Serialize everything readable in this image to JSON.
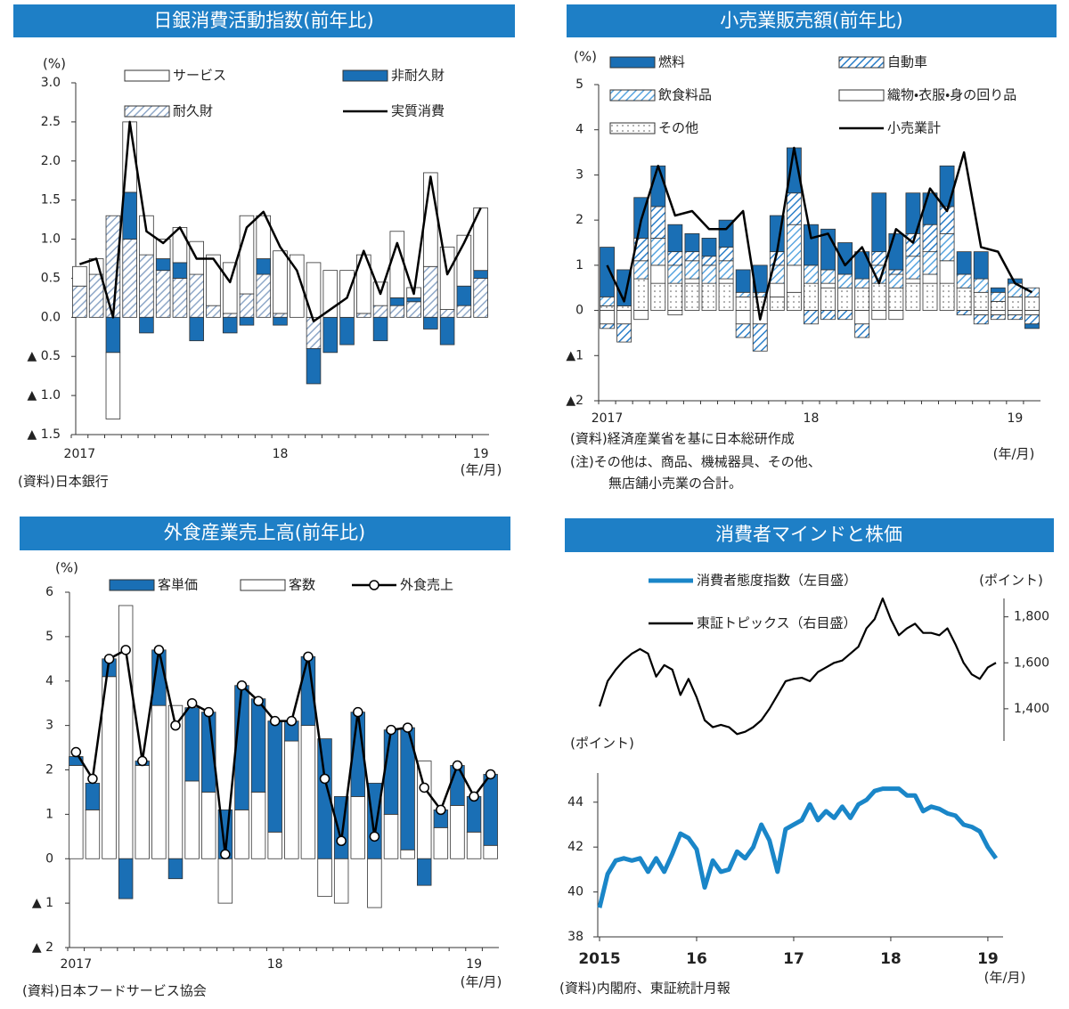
{
  "chart_data": [
    {
      "type": "bar",
      "title": "日銀消費活動指数(前年比)",
      "y_unit": "(%)",
      "x_unit": "(年/月)",
      "source": "(資料)日本銀行",
      "categories": [
        "2017",
        null,
        null,
        null,
        null,
        null,
        null,
        null,
        null,
        null,
        null,
        null,
        "18",
        null,
        null,
        null,
        null,
        null,
        null,
        null,
        null,
        null,
        null,
        null,
        "19"
      ],
      "ylim": [
        -1.5,
        3
      ],
      "yticks": [
        {
          "value": 3,
          "label": "3.0"
        },
        2.5,
        {
          "value": 2,
          "label": "2.0"
        },
        1.5,
        {
          "value": 1,
          "label": "1.0"
        },
        0.5,
        {
          "value": 0,
          "label": "0.0"
        },
        {
          "value": -0.5,
          "label": "▲ 0.5"
        },
        {
          "value": -1,
          "label": "▲ 1.0"
        },
        {
          "value": -1.5,
          "label": "▲ 1.5"
        }
      ],
      "series": [
        {
          "name": "サービス",
          "color": "#ffffff",
          "values": [
            0.25,
            0.2,
            -0.85,
            0.9,
            0.5,
            0.25,
            0.45,
            0.42,
            0.65,
            0.65,
            1.0,
            0.55,
            0.8,
            0.8,
            0.7,
            0.6,
            0.6,
            0.75,
            0.3,
            0.85,
            0.13,
            1.2,
            0.8,
            0.65,
            0.8
          ]
        },
        {
          "name": "非耐久財",
          "color": "#1a6fb5",
          "values": [
            0,
            0,
            -0.45,
            0.6,
            -0.2,
            0.15,
            0.2,
            -0.3,
            0,
            -0.2,
            -0.1,
            0.2,
            -0.1,
            0,
            -0.45,
            -0.45,
            -0.35,
            0,
            -0.3,
            0.1,
            0.05,
            -0.15,
            -0.35,
            0.25,
            0.1
          ]
        },
        {
          "name": "耐久財",
          "color": "#8fa8c8",
          "pattern": "hatch",
          "values": [
            0.4,
            0.55,
            1.3,
            1.0,
            0.8,
            0.6,
            0.5,
            0.55,
            0.15,
            0.05,
            0.3,
            0.55,
            0.05,
            0,
            -0.4,
            0,
            0,
            0.05,
            0.15,
            0.15,
            0.2,
            0.65,
            0.1,
            0.15,
            0.5
          ]
        },
        {
          "name": "実質消費",
          "type": "line",
          "color": "#000000",
          "values": [
            0.68,
            0.75,
            0.0,
            2.5,
            1.1,
            0.95,
            1.15,
            0.75,
            0.75,
            0.45,
            1.15,
            1.35,
            0.9,
            0.6,
            -0.05,
            0.1,
            0.25,
            0.85,
            0.3,
            0.95,
            0.3,
            1.8,
            0.55,
            0.95,
            1.4
          ]
        }
      ]
    },
    {
      "type": "bar",
      "title": "小売業販売額(前年比)",
      "y_unit": "(%)",
      "x_unit": "(年/月)",
      "source": "(資料)経済産業省を基に日本総研作成",
      "notes": [
        "(注)その他は、商品、機械器具、その他、",
        "無店舗小売業の合計。"
      ],
      "categories": [
        "2017",
        null,
        null,
        null,
        null,
        null,
        null,
        null,
        null,
        null,
        null,
        null,
        "18",
        null,
        null,
        null,
        null,
        null,
        null,
        null,
        null,
        null,
        null,
        null,
        "19",
        null
      ],
      "ylim": [
        -2,
        5
      ],
      "yticks": [
        5,
        4,
        3,
        2,
        1,
        0,
        {
          "value": -1,
          "label": "▲1"
        },
        {
          "value": -2,
          "label": "▲2"
        }
      ],
      "series": [
        {
          "name": "燃料",
          "color": "#1a6fb5",
          "values": [
            1.1,
            0.8,
            0.9,
            0.9,
            0.6,
            0.4,
            0.4,
            0.6,
            0.5,
            0.6,
            0.8,
            1.0,
            0.9,
            0.9,
            0.7,
            0.6,
            1.3,
            0.8,
            0.9,
            0.7,
            0.9,
            0.5,
            0.6,
            0.1,
            0.1,
            -0.1
          ]
        },
        {
          "name": "自動車",
          "color": "#2b7fc9",
          "pattern": "hatch",
          "values": [
            -0.1,
            -0.4,
            0.5,
            0.7,
            0.3,
            0.2,
            0.2,
            0.3,
            -0.3,
            -0.6,
            0.3,
            0.7,
            -0.3,
            -0.2,
            -0.2,
            -0.3,
            0.3,
            0.1,
            0.5,
            0.6,
            0.6,
            -0.1,
            -0.2,
            -0.1,
            -0.1,
            -0.2
          ]
        },
        {
          "name": "飲食料品",
          "color": "#5aa6e0",
          "pattern": "hatch",
          "values": [
            0.2,
            0.0,
            0.4,
            0.6,
            0.4,
            0.4,
            0.4,
            0.4,
            0.1,
            0.1,
            0.4,
            0.9,
            0.4,
            0.3,
            0.3,
            0.2,
            0.4,
            0.3,
            0.5,
            0.5,
            0.6,
            0.3,
            0.3,
            0.2,
            0.3,
            0.2
          ]
        },
        {
          "name": "織物・衣服・身の回り品",
          "color": "#ffffff",
          "values": [
            -0.3,
            -0.3,
            -0.2,
            0.4,
            -0.1,
            0.1,
            0.0,
            0.1,
            -0.3,
            -0.3,
            0.3,
            0.6,
            0.0,
            0.1,
            0.0,
            -0.3,
            -0.2,
            -0.2,
            0.1,
            0.2,
            0.5,
            0.0,
            -0.1,
            -0.1,
            -0.1,
            -0.1
          ]
        },
        {
          "name": "その他",
          "color": "#555555",
          "pattern": "dots",
          "values": [
            0.1,
            0.1,
            0.7,
            0.6,
            0.6,
            0.6,
            0.6,
            0.6,
            0.3,
            0.3,
            0.3,
            0.4,
            0.6,
            0.5,
            0.5,
            0.5,
            0.6,
            0.5,
            0.6,
            0.6,
            0.6,
            0.5,
            0.4,
            0.2,
            0.3,
            0.3
          ]
        },
        {
          "name": "小売業計",
          "type": "line",
          "color": "#000000",
          "values": [
            1.0,
            0.2,
            2.0,
            3.2,
            2.1,
            2.2,
            1.8,
            1.8,
            2.2,
            -0.2,
            1.3,
            3.6,
            1.6,
            1.7,
            1.0,
            1.4,
            0.6,
            1.8,
            1.5,
            2.7,
            2.2,
            3.5,
            1.4,
            1.3,
            0.6,
            0.4
          ]
        }
      ]
    },
    {
      "type": "bar",
      "title": "外食産業売上高(前年比)",
      "y_unit": "(%)",
      "x_unit": "(年/月)",
      "source": "(資料)日本フードサービス協会",
      "categories": [
        "2017",
        null,
        null,
        null,
        null,
        null,
        null,
        null,
        null,
        null,
        null,
        null,
        "18",
        null,
        null,
        null,
        null,
        null,
        null,
        null,
        null,
        null,
        null,
        null,
        "19",
        null
      ],
      "ylim": [
        -2,
        6
      ],
      "yticks": [
        6,
        5,
        4,
        3,
        2,
        1,
        0,
        {
          "value": -1,
          "label": "▲ 1"
        },
        {
          "value": -2,
          "label": "▲ 2"
        }
      ],
      "series": [
        {
          "name": "客単価",
          "color": "#1a6fb5",
          "values": [
            0.2,
            0.6,
            0.4,
            -0.9,
            0.1,
            1.25,
            -0.45,
            1.65,
            1.8,
            1.1,
            2.8,
            2.1,
            2.5,
            0.45,
            1.55,
            2.7,
            1.4,
            1.9,
            1.7,
            1.9,
            2.75,
            -0.6,
            0.4,
            0.9,
            0.8,
            1.6
          ]
        },
        {
          "name": "客数",
          "color": "#ffffff",
          "values": [
            2.1,
            1.1,
            4.1,
            5.7,
            2.1,
            3.45,
            3.45,
            1.75,
            1.5,
            -1.0,
            1.1,
            1.5,
            0.6,
            2.65,
            3.0,
            -0.85,
            -1.0,
            1.4,
            -1.1,
            1.0,
            0.2,
            2.2,
            0.7,
            1.2,
            0.6,
            0.3
          ]
        },
        {
          "name": "外食売上",
          "type": "line",
          "markers": true,
          "color": "#000000",
          "values": [
            2.4,
            1.8,
            4.5,
            4.7,
            2.2,
            4.7,
            3.0,
            3.5,
            3.3,
            0.1,
            3.9,
            3.55,
            3.1,
            3.1,
            4.55,
            1.8,
            0.4,
            3.3,
            0.5,
            2.9,
            2.95,
            1.6,
            1.1,
            2.1,
            1.4,
            1.9
          ]
        }
      ]
    },
    {
      "type": "line",
      "title": "消費者マインドと株価",
      "y_unit": "(ポイント)",
      "y2_unit": "(ポイント)",
      "x_unit": "(年/月)",
      "source": "(資料)内閣府、東証統計月報",
      "categories": [
        "2015",
        null,
        null,
        null,
        null,
        null,
        null,
        null,
        null,
        null,
        null,
        null,
        "16",
        null,
        null,
        null,
        null,
        null,
        null,
        null,
        null,
        null,
        null,
        null,
        "17",
        null,
        null,
        null,
        null,
        null,
        null,
        null,
        null,
        null,
        null,
        null,
        "18",
        null,
        null,
        null,
        null,
        null,
        null,
        null,
        null,
        null,
        null,
        null,
        "19",
        null
      ],
      "ylim": [
        38,
        45.3
      ],
      "yticks": [
        38,
        40,
        42,
        44
      ],
      "y2lim": [
        1260,
        1880
      ],
      "y2ticks": [
        {
          "value": 1400,
          "label": "1,400"
        },
        {
          "value": 1600,
          "label": "1,600"
        },
        {
          "value": 1800,
          "label": "1,800"
        }
      ],
      "series": [
        {
          "name": "消費者態度指数（左目盛）",
          "color": "#1a86c8",
          "values": [
            39.3,
            40.8,
            41.4,
            41.5,
            41.4,
            41.5,
            40.9,
            41.5,
            40.9,
            41.7,
            42.6,
            42.4,
            41.9,
            40.2,
            41.4,
            40.9,
            41.0,
            41.8,
            41.5,
            42.0,
            43.0,
            42.3,
            40.9,
            42.8,
            43.0,
            43.2,
            43.9,
            43.2,
            43.6,
            43.3,
            43.8,
            43.3,
            43.9,
            44.1,
            44.5,
            44.6,
            44.6,
            44.6,
            44.3,
            44.3,
            43.6,
            43.8,
            43.7,
            43.5,
            43.4,
            43.0,
            42.9,
            42.7,
            42.0,
            41.5
          ]
        },
        {
          "name": "東証トピックス（右目盛）",
          "axis": "y2",
          "color": "#000000",
          "values": [
            1410,
            1520,
            1570,
            1610,
            1640,
            1660,
            1640,
            1540,
            1590,
            1570,
            1460,
            1530,
            1450,
            1350,
            1320,
            1330,
            1320,
            1290,
            1300,
            1320,
            1350,
            1400,
            1460,
            1520,
            1530,
            1535,
            1520,
            1560,
            1580,
            1600,
            1610,
            1640,
            1670,
            1750,
            1790,
            1880,
            1790,
            1720,
            1750,
            1770,
            1730,
            1730,
            1720,
            1750,
            1680,
            1600,
            1550,
            1530,
            1580,
            1600
          ]
        }
      ]
    }
  ]
}
